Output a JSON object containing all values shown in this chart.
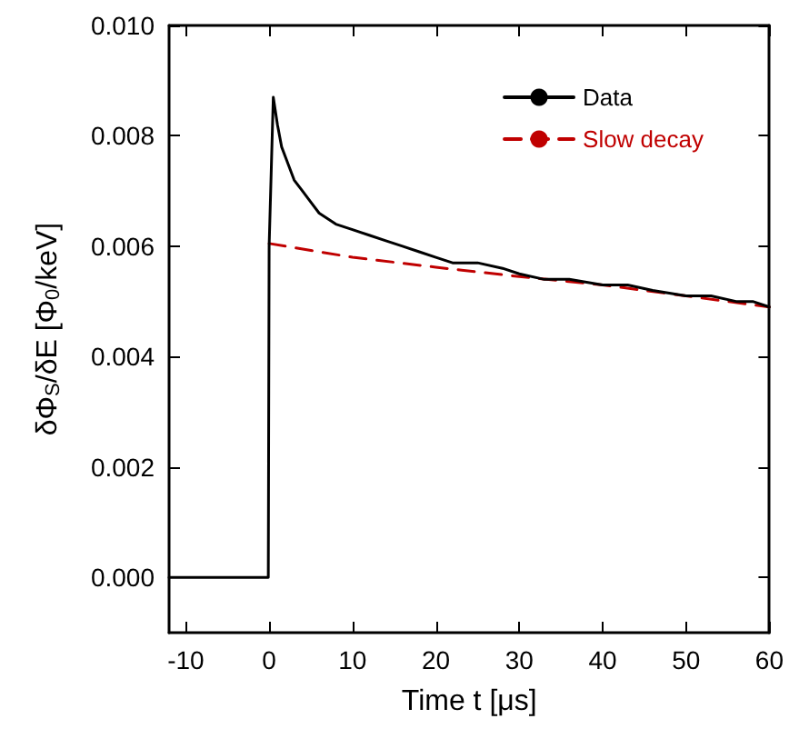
{
  "chart_data": {
    "type": "line",
    "xlabel": "Time t [μs]",
    "ylabel": "δΦ$_{S}$/δE [Φ$_{0}$/keV]",
    "xlim": [
      -12,
      60
    ],
    "xticks": [
      -10,
      0,
      10,
      20,
      30,
      40,
      50,
      60
    ],
    "ylim": [
      -0.001,
      0.01
    ],
    "yticks": [
      {
        "value": 0,
        "label": "0.000"
      },
      0.002,
      0.004,
      0.006,
      0.008,
      {
        "value": 0.01,
        "label": "0.010"
      }
    ],
    "grid": false,
    "legend": "top right",
    "marker": "none",
    "series": [
      {
        "name": "Data",
        "color": "#000000",
        "line_style": "solid",
        "x": [
          -12,
          -10,
          -8,
          -6,
          -4,
          -2,
          -0.1,
          0,
          0.5,
          1,
          1.5,
          2,
          3,
          4,
          5,
          6,
          7,
          8,
          10,
          12,
          14,
          16,
          18,
          20,
          22,
          25,
          28,
          30,
          33,
          36,
          40,
          43,
          46,
          50,
          53,
          56,
          58,
          60
        ],
        "values": [
          0.0,
          0.0,
          0.0,
          0.0,
          0.0,
          0.0,
          0.0,
          0.006,
          0.0087,
          0.0082,
          0.0078,
          0.0076,
          0.0072,
          0.007,
          0.0068,
          0.0066,
          0.0065,
          0.0064,
          0.0063,
          0.0062,
          0.0061,
          0.006,
          0.0059,
          0.0058,
          0.0057,
          0.0057,
          0.0056,
          0.0055,
          0.0054,
          0.0054,
          0.0053,
          0.0053,
          0.0052,
          0.0051,
          0.0051,
          0.005,
          0.005,
          0.0049
        ]
      },
      {
        "name": "Slow decay",
        "color": "#c00000",
        "line_style": "dashed",
        "x": [
          0,
          10,
          20,
          30,
          40,
          50,
          60
        ],
        "values": [
          0.00605,
          0.0058,
          0.00562,
          0.00545,
          0.0053,
          0.0051,
          0.0049
        ]
      }
    ]
  }
}
